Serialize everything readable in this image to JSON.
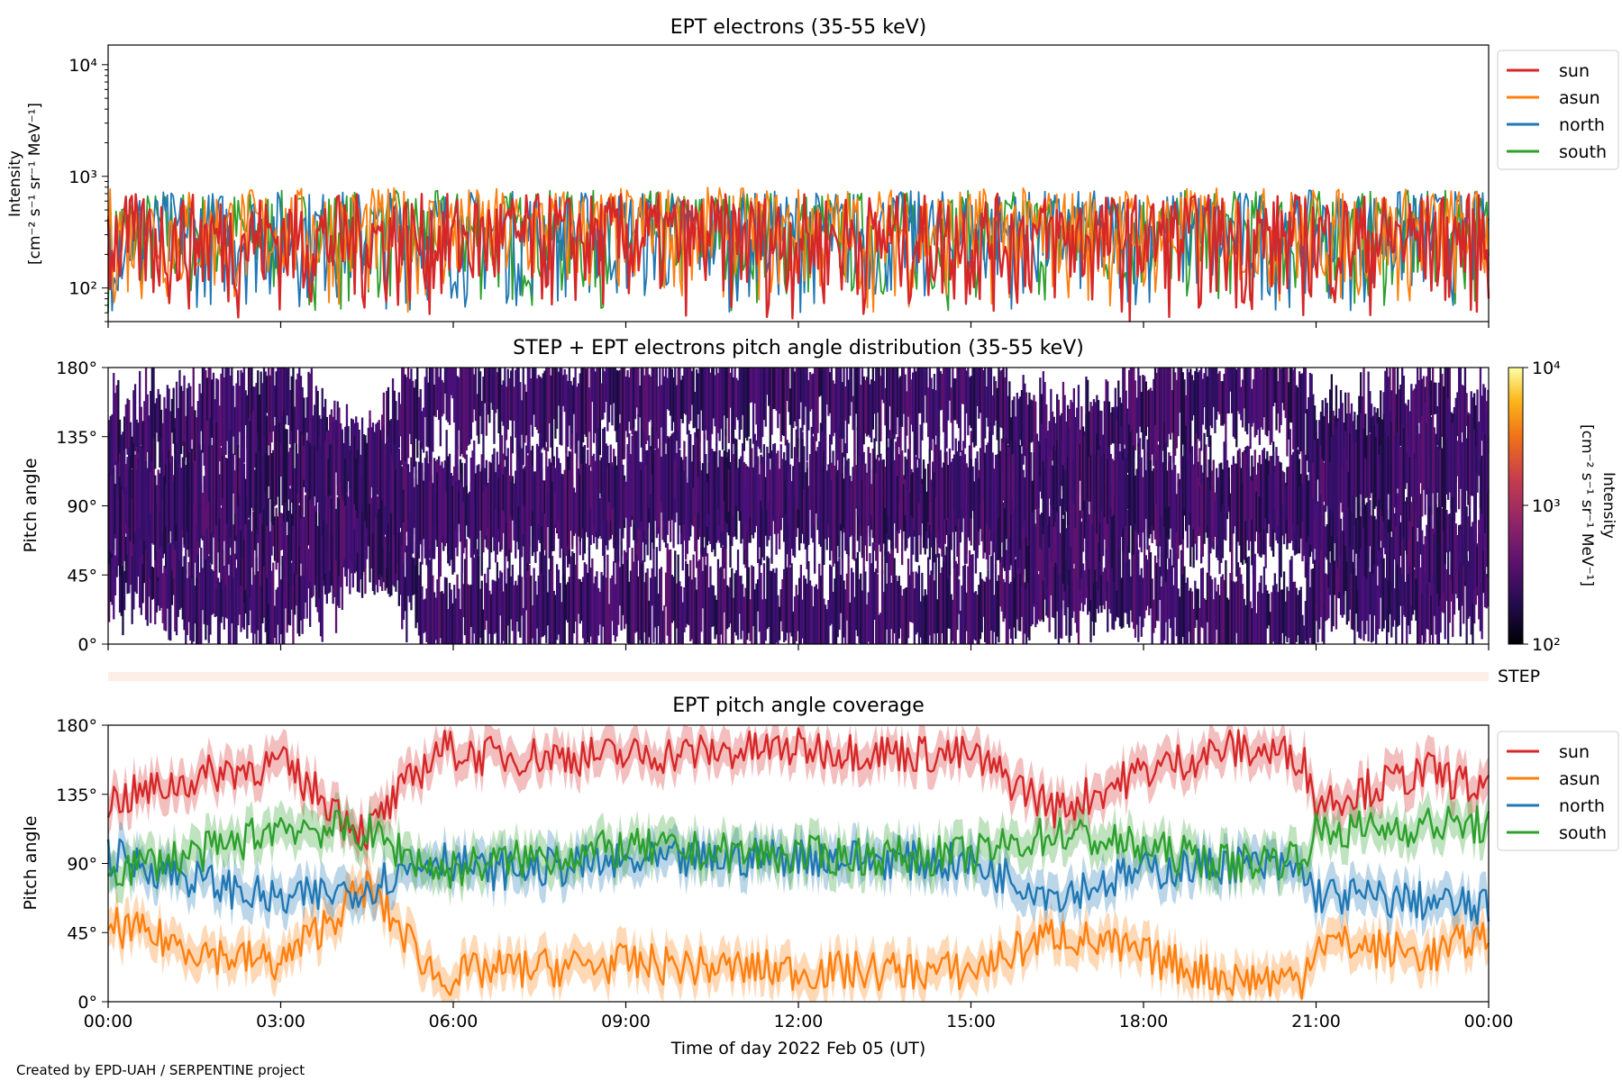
{
  "footer": "Created by EPD-UAH / SERPENTINE project",
  "colors": {
    "sun": "#d62728",
    "asun": "#ff7f0e",
    "north": "#1f77b4",
    "south": "#2ca02c",
    "pad_fill": "#2d1160",
    "step_bar": "#fdeee8"
  },
  "chart_data": [
    {
      "type": "line",
      "title": "EPT electrons (35-55 keV)",
      "ylabel_line1": "Intensity",
      "ylabel_line2": "[cm⁻² s⁻¹ sr⁻¹ MeV⁻¹]",
      "yscale": "log",
      "ylim": [
        50,
        15000
      ],
      "yticks": [
        {
          "v": 100,
          "label": "10²"
        },
        {
          "v": 1000,
          "label": "10³"
        },
        {
          "v": 10000,
          "label": "10⁴"
        }
      ],
      "xlim": [
        "2022-02-05 00:00",
        "2022-02-06 00:00"
      ],
      "legend": "top-right (outside)",
      "series": [
        {
          "name": "sun",
          "typical_range": [
            50,
            700
          ]
        },
        {
          "name": "asun",
          "typical_range": [
            60,
            800
          ]
        },
        {
          "name": "north",
          "typical_range": [
            60,
            750
          ]
        },
        {
          "name": "south",
          "typical_range": [
            60,
            750
          ]
        }
      ],
      "note_values_sampled": "noisy time series, intensity fluctuating roughly between 50 and 800"
    },
    {
      "type": "heatmap",
      "title": "STEP + EPT electrons pitch angle distribution (35-55 keV)",
      "ylabel": "Pitch angle",
      "ylim": [
        0,
        180
      ],
      "yticks": [
        "0°",
        "45°",
        "90°",
        "135°",
        "180°"
      ],
      "colorbar_label_line1": "Intensity",
      "colorbar_label_line2": "[cm⁻² s⁻¹ sr⁻¹ MeV⁻¹]",
      "colorbar_ticks": [
        "10²",
        "10³",
        "10⁴"
      ],
      "colorbar_range": [
        100,
        10000
      ],
      "colormap": "inferno",
      "step_label": "STEP"
    },
    {
      "type": "line",
      "title": "EPT pitch angle coverage",
      "ylabel": "Pitch angle",
      "ylim": [
        0,
        180
      ],
      "yticks": [
        "0°",
        "45°",
        "90°",
        "135°",
        "180°"
      ],
      "xlabel": "Time of day 2022 Feb 05 (UT)",
      "xticks": [
        "00:00",
        "03:00",
        "06:00",
        "09:00",
        "12:00",
        "15:00",
        "18:00",
        "21:00",
        "00:00"
      ],
      "legend": "top-right (outside)",
      "series": [
        {
          "name": "sun",
          "x": [
            "00:00",
            "02:00",
            "03:00",
            "04:30",
            "05:45",
            "06:30",
            "09:00",
            "12:00",
            "15:00",
            "16:30",
            "18:00",
            "19:30",
            "20:45",
            "21:00",
            "23:00",
            "24:00"
          ],
          "values": [
            130,
            150,
            155,
            110,
            165,
            160,
            160,
            165,
            160,
            125,
            150,
            165,
            160,
            130,
            150,
            135
          ]
        },
        {
          "name": "asun",
          "x": [
            "00:00",
            "02:00",
            "03:00",
            "04:30",
            "05:45",
            "06:30",
            "09:00",
            "12:00",
            "15:00",
            "16:30",
            "18:00",
            "19:30",
            "20:45",
            "21:00",
            "23:00",
            "24:00"
          ],
          "values": [
            50,
            30,
            25,
            75,
            15,
            20,
            25,
            20,
            20,
            45,
            30,
            15,
            15,
            40,
            30,
            45
          ]
        },
        {
          "name": "north",
          "x": [
            "00:00",
            "02:00",
            "03:00",
            "04:30",
            "05:45",
            "06:30",
            "09:00",
            "12:00",
            "15:00",
            "16:30",
            "18:00",
            "19:30",
            "20:45",
            "21:00",
            "23:00",
            "24:00"
          ],
          "values": [
            95,
            75,
            65,
            75,
            95,
            85,
            90,
            95,
            90,
            70,
            85,
            90,
            85,
            70,
            65,
            60
          ]
        },
        {
          "name": "south",
          "x": [
            "00:00",
            "02:00",
            "03:00",
            "04:30",
            "05:45",
            "06:30",
            "09:00",
            "12:00",
            "15:00",
            "16:30",
            "18:00",
            "19:30",
            "20:45",
            "21:00",
            "23:00",
            "24:00"
          ],
          "values": [
            85,
            100,
            115,
            110,
            85,
            90,
            100,
            95,
            95,
            110,
            100,
            90,
            95,
            110,
            115,
            115
          ]
        }
      ]
    }
  ]
}
